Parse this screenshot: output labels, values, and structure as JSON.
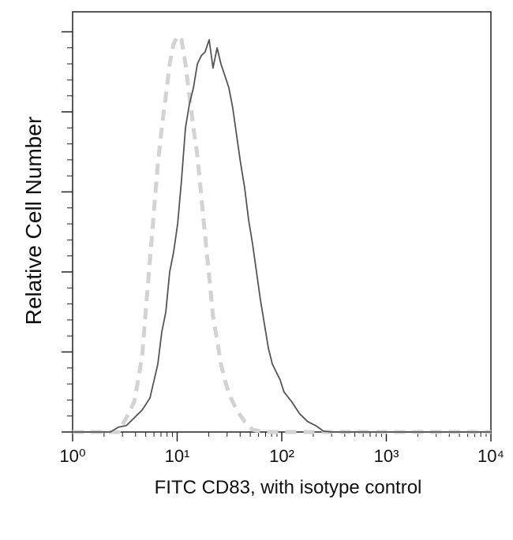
{
  "chart_data": {
    "type": "line",
    "x_label": "FITC CD83, with isotype control",
    "y_label": "Relative Cell Number",
    "xscale": "log",
    "xlim": [
      1,
      10000
    ],
    "ylim": [
      0,
      105
    ],
    "xticks": [
      {
        "value": 1,
        "label": "10⁰"
      },
      {
        "value": 10,
        "label": "10¹"
      },
      {
        "value": 100,
        "label": "10²"
      },
      {
        "value": 1000,
        "label": "10³"
      },
      {
        "value": 10000,
        "label": "10⁴"
      }
    ],
    "xminorticks": [
      2,
      3,
      4,
      5,
      6,
      7,
      8,
      9,
      20,
      30,
      40,
      50,
      60,
      70,
      80,
      90,
      200,
      300,
      400,
      500,
      600,
      700,
      800,
      900,
      2000,
      3000,
      4000,
      5000,
      6000,
      7000,
      8000,
      9000
    ],
    "yticks": [
      0,
      20,
      40,
      60,
      80,
      100
    ],
    "yminorticks": [
      4,
      8,
      12,
      16,
      24,
      28,
      32,
      36,
      44,
      48,
      52,
      56,
      64,
      68,
      72,
      76,
      84,
      88,
      92,
      96
    ],
    "series": [
      {
        "color": "#d3d3d3",
        "dash": true,
        "x": [
          1,
          2.74,
          3.26,
          3.88,
          4.23,
          4.62,
          5.03,
          5.49,
          5.99,
          6.53,
          7.13,
          7.78,
          8.48,
          9.25,
          10.1,
          11.0,
          12.0,
          13.1,
          14.3,
          15.6,
          17.0,
          18.5,
          20.2,
          22.0,
          24.1,
          26.2,
          28.6,
          31.2,
          37.1,
          44.2,
          52.6,
          68.2,
          10000
        ],
        "values": [
          0,
          0,
          3.5,
          7.5,
          13,
          19,
          31,
          43,
          55,
          67,
          76,
          84,
          92,
          97,
          99,
          98,
          92,
          84,
          76,
          69,
          59,
          49,
          39,
          29,
          23,
          17,
          13,
          9.5,
          5.5,
          2.6,
          0.6,
          0,
          0
        ]
      },
      {
        "color": "#555555",
        "dash": false,
        "x": [
          1,
          2.3,
          2.74,
          3.26,
          3.88,
          4.62,
          5.49,
          6.53,
          7.13,
          7.78,
          8.48,
          9.25,
          10.1,
          11.0,
          12.0,
          13.1,
          14.3,
          15.6,
          17.0,
          18.5,
          20.2,
          22.0,
          24.1,
          26.2,
          28.6,
          31.2,
          34.0,
          37.1,
          40.5,
          44.2,
          48.2,
          52.6,
          57.3,
          62.5,
          68.2,
          74.4,
          81.2,
          88.5,
          96.6,
          105,
          125,
          149,
          177,
          211,
          251,
          299,
          10000
        ],
        "values": [
          0,
          0,
          1.2,
          1.6,
          3.5,
          5.5,
          8.5,
          17,
          25,
          30,
          40,
          45,
          52,
          63,
          76,
          82,
          86,
          92,
          94,
          95,
          98,
          91,
          96,
          92,
          89,
          86,
          81,
          74,
          67,
          61,
          53,
          47,
          40,
          33,
          27,
          21,
          17,
          15,
          13,
          10,
          7.5,
          4.5,
          2.6,
          1.6,
          0.2,
          0,
          0
        ]
      }
    ]
  }
}
